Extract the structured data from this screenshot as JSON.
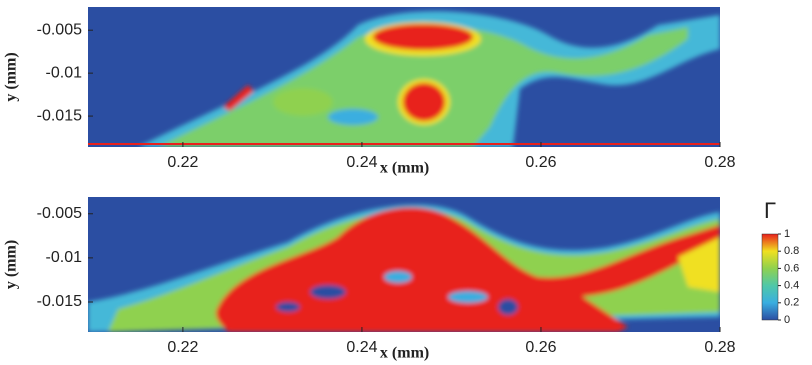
{
  "chart_data": [
    {
      "type": "contour",
      "xlabel": "x (mm)",
      "ylabel": "y (mm)",
      "xlim": [
        0.2094,
        0.28
      ],
      "xticks": [
        0.22,
        0.24,
        0.26,
        0.28
      ],
      "ylim": [
        -0.0186,
        -0.0023
      ],
      "yticks": [
        -0.005,
        -0.01,
        -0.015
      ]
    },
    {
      "type": "contour",
      "xlabel": "x (mm)",
      "ylabel": "y (mm)",
      "xlim": [
        0.2094,
        0.28
      ],
      "xticks": [
        0.22,
        0.24,
        0.26,
        0.28
      ],
      "ylim": [
        -0.0184,
        -0.0031
      ],
      "yticks": [
        -0.005,
        -0.01,
        -0.015
      ],
      "colorbar": {
        "title": "Γ",
        "clim": [
          0,
          1
        ],
        "ticks": [
          1,
          0.8,
          0.6,
          0.4,
          0.2,
          0
        ],
        "colors": [
          "#2b4ea2",
          "#3aaee0",
          "#4fc8a8",
          "#8fd14f",
          "#f0e020",
          "#e8201c"
        ]
      }
    }
  ]
}
